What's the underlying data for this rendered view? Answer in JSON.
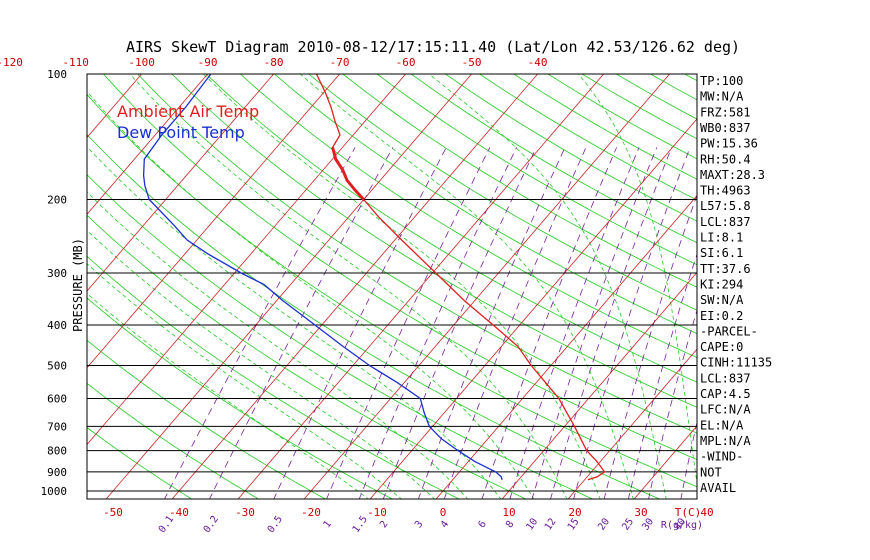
{
  "title": "AIRS SkewT Diagram 2010-08-12/17:15:11.40 (Lat/Lon 42.53/126.62 deg)",
  "legend": {
    "air_label": "Ambient Air Temp",
    "dew_label": "Dew Point Temp",
    "air_color": "#e02020",
    "dew_color": "#1a2fd0"
  },
  "colors": {
    "isotherm": "#cc2222",
    "dry_adiabat": "#22cc22",
    "moist_adiabat": "#22cc22",
    "mixing_ratio": "#7b1fa2",
    "isobar": "#000000"
  },
  "chart_data": {
    "type": "line",
    "title": "AIRS SkewT Diagram 2010-08-12/17:15:11.40 (Lat/Lon 42.53/126.62 deg)",
    "ylabel": "PRESSURE (MB)",
    "y_scale": "log",
    "ylim": [
      1000,
      100
    ],
    "pressure_levels": [
      100,
      200,
      300,
      400,
      500,
      600,
      700,
      800,
      900,
      1000
    ],
    "pressure_tick_labels": [
      "100",
      "200",
      "300",
      "400",
      "500",
      "600",
      "700",
      "800",
      "900",
      "1000"
    ],
    "top_temp_ticks": [
      -120,
      -110,
      -100,
      -90,
      -80,
      -70,
      -60,
      -50,
      -40
    ],
    "top_temp_tick_labels": [
      "-120",
      "-110",
      "-100",
      "-90",
      "-80",
      "-70",
      "-60",
      "-50",
      "-40"
    ],
    "bottom_temp_ticks": [
      -50,
      -40,
      -30,
      -20,
      -10,
      0,
      10,
      20,
      30,
      40
    ],
    "bottom_temp_tick_labels": [
      "-50",
      "-40",
      "-30",
      "-20",
      "-10",
      "0",
      "10",
      "20",
      "30",
      "40"
    ],
    "bottom_temp_unit": "T(C)",
    "mixing_ratio_ticks": [
      0.1,
      0.2,
      0.5,
      1,
      1.5,
      2,
      3,
      4,
      6,
      8,
      10,
      12,
      15,
      20,
      25,
      30,
      40
    ],
    "mixing_ratio_tick_labels": [
      "0.1",
      "0.2",
      "0.5",
      "1",
      "1.5",
      "2",
      "3",
      "4",
      "6",
      "8",
      "10",
      "12",
      "15",
      "20",
      "25",
      "30",
      "40"
    ],
    "mixing_ratio_unit": "R(g/kg)",
    "series": [
      {
        "name": "Ambient Air Temp",
        "color": "#e02020",
        "pressure": [
          940,
          925,
          900,
          850,
          800,
          700,
          600,
          500,
          450,
          400,
          350,
          300,
          250,
          220,
          200,
          190,
          180,
          170,
          160,
          150,
          140,
          130,
          120,
          110,
          100
        ],
        "temperature": [
          20.5,
          21.5,
          22.0,
          19.5,
          16.5,
          11.5,
          5.5,
          -3.0,
          -7.5,
          -14.0,
          -21.5,
          -29.5,
          -39.0,
          -45.5,
          -50.0,
          -52.5,
          -55.0,
          -57.0,
          -59.5,
          -61.5,
          -62.0,
          -64.5,
          -67.0,
          -70.0,
          -73.5
        ]
      },
      {
        "name": "Dew Point Temp",
        "color": "#1a2fd0",
        "pressure": [
          940,
          925,
          900,
          850,
          800,
          750,
          700,
          650,
          600,
          550,
          500,
          450,
          400,
          350,
          320,
          300,
          270,
          250,
          230,
          200,
          185,
          175,
          160,
          140,
          120,
          100
        ],
        "temperature": [
          7.5,
          7.0,
          5.5,
          1.0,
          -3.0,
          -7.0,
          -10.5,
          -13.0,
          -15.5,
          -21.0,
          -27.5,
          -34.0,
          -41.0,
          -49.0,
          -54.0,
          -59.0,
          -66.5,
          -71.5,
          -75.5,
          -82.5,
          -85.0,
          -86.5,
          -88.5,
          -89.0,
          -89.0,
          -89.5
        ]
      }
    ],
    "stats": [
      "TP:100",
      "MW:N/A",
      "FRZ:581",
      "WB0:837",
      "PW:15.36",
      "RH:50.4",
      "MAXT:28.3",
      "TH:4963",
      "L57:5.8",
      "LCL:837",
      "LI:8.1",
      "SI:6.1",
      "TT:37.6",
      "KI:294",
      "SW:N/A",
      "EI:0.2",
      "-PARCEL-",
      "CAPE:0",
      "CINH:11135",
      "LCL:837",
      "CAP:4.5",
      "LFC:N/A",
      "EL:N/A",
      "MPL:N/A",
      "-WIND-",
      "NOT",
      "AVAIL"
    ]
  }
}
